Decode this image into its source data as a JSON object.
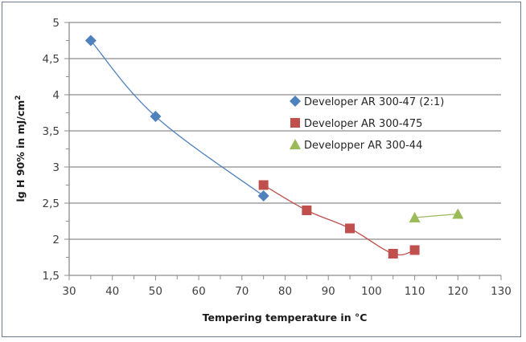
{
  "chart_data": {
    "type": "scatter",
    "title": "",
    "xlabel": "Tempering temperature in °C",
    "ylabel": "lg H 90% in mJ/cm²",
    "xlim": [
      30,
      130
    ],
    "ylim": [
      1.5,
      5
    ],
    "x_ticks": [
      "30",
      "40",
      "50",
      "60",
      "70",
      "80",
      "90",
      "100",
      "110",
      "120",
      "130"
    ],
    "x_tick_values": [
      30,
      40,
      50,
      60,
      70,
      80,
      90,
      100,
      110,
      120,
      130
    ],
    "y_ticks": [
      "1,5",
      "2",
      "2,5",
      "3",
      "3,5",
      "4",
      "4,5",
      "5"
    ],
    "y_tick_values": [
      1.5,
      2,
      2.5,
      3,
      3.5,
      4,
      4.5,
      5
    ],
    "grid": "horizontal major",
    "legend_position": "center-right",
    "series": [
      {
        "name": "Developer AR 300-47 (2:1)",
        "marker": "diamond",
        "color": "#4f81bd",
        "line": "smooth",
        "x": [
          35,
          50,
          75
        ],
        "y": [
          4.75,
          3.7,
          2.6
        ]
      },
      {
        "name": "Developer AR 300-475",
        "marker": "square",
        "color": "#c0504d",
        "line": "smooth",
        "x": [
          75,
          85,
          95,
          105,
          110
        ],
        "y": [
          2.75,
          2.4,
          2.15,
          1.8,
          1.85
        ]
      },
      {
        "name": "Developper AR 300-44",
        "marker": "triangle",
        "color": "#9bbb59",
        "line": "straight",
        "x": [
          110,
          120
        ],
        "y": [
          2.3,
          2.35
        ]
      }
    ]
  }
}
